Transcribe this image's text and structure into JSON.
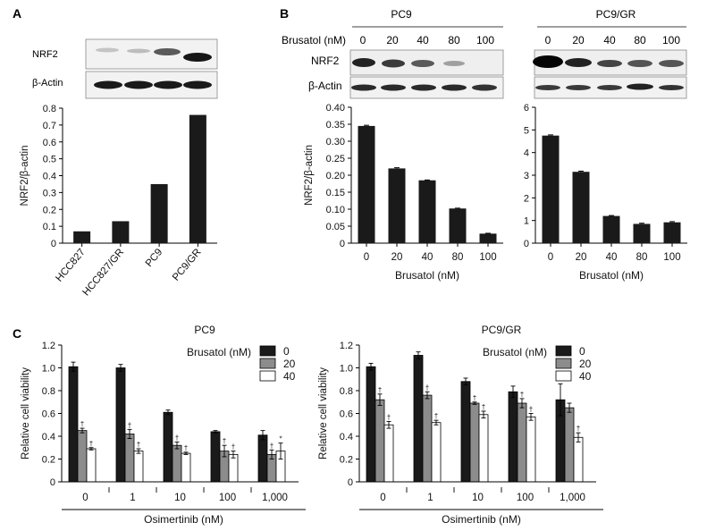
{
  "panel_labels": {
    "a": "A",
    "b": "B",
    "c": "C"
  },
  "colors": {
    "black_bar": "#1a1a1a",
    "gray_bar": "#8c8c8c",
    "white_bar": "#ffffff",
    "axis": "#000000"
  },
  "blots": {
    "a": {
      "row1": "NRF2",
      "row2": "β-Actin"
    },
    "b": {
      "pc9_title": "PC9",
      "gr_title": "PC9/GR",
      "treatment_label": "Brusatol (nM)",
      "doses": [
        "0",
        "20",
        "40",
        "80",
        "100"
      ],
      "row1": "NRF2",
      "row2": "β-Actin"
    }
  },
  "chart_data": [
    {
      "id": "a",
      "type": "bar",
      "title": "",
      "ylabel": "NRF2/β-actin",
      "xlabel": "",
      "ylim": [
        0,
        0.8
      ],
      "yticks": [
        "0",
        "0.1",
        "0.2",
        "0.3",
        "0.4",
        "0.5",
        "0.6",
        "0.7",
        "0.8"
      ],
      "categories": [
        "HCC827",
        "HCC827/GR",
        "PC9",
        "PC9/GR"
      ],
      "values": [
        0.07,
        0.13,
        0.35,
        0.76
      ]
    },
    {
      "id": "b_pc9",
      "type": "bar",
      "title": "",
      "ylabel": "NRF2/β-actin",
      "xlabel": "Brusatol (nM)",
      "ylim": [
        0,
        0.4
      ],
      "yticks": [
        "0",
        "0.05",
        "0.10",
        "0.15",
        "0.20",
        "0.25",
        "0.30",
        "0.35",
        "0.40"
      ],
      "categories": [
        "0",
        "20",
        "40",
        "80",
        "100"
      ],
      "values": [
        0.345,
        0.22,
        0.185,
        0.102,
        0.028
      ],
      "errors": [
        0.002,
        0.002,
        0.001,
        0.001,
        0.001
      ]
    },
    {
      "id": "b_gr",
      "type": "bar",
      "title": "",
      "ylabel": "",
      "xlabel": "Brusatol (nM)",
      "ylim": [
        0,
        6
      ],
      "yticks": [
        "0",
        "1",
        "2",
        "3",
        "4",
        "5",
        "6"
      ],
      "categories": [
        "0",
        "20",
        "40",
        "80",
        "100"
      ],
      "values": [
        4.75,
        3.15,
        1.2,
        0.85,
        0.92
      ],
      "errors": [
        0.03,
        0.03,
        0.02,
        0.03,
        0.03
      ]
    },
    {
      "id": "c_pc9",
      "type": "bar",
      "title": "PC9",
      "ylabel": "Relative cell viability",
      "xlabel": "Osimertinib (nM)",
      "ylim": [
        0,
        1.2
      ],
      "yticks": [
        "0",
        "0.2",
        "0.4",
        "0.6",
        "0.8",
        "1.0",
        "1.2"
      ],
      "legend_title": "Brusatol (nM)",
      "categories": [
        "0",
        "1",
        "10",
        "100",
        "1,000"
      ],
      "series": [
        {
          "name": "0",
          "values": [
            1.01,
            1.0,
            0.61,
            0.44,
            0.41
          ],
          "errors": [
            0.04,
            0.03,
            0.02,
            0.01,
            0.04
          ],
          "marks": [
            "",
            "",
            "",
            "",
            ""
          ]
        },
        {
          "name": "20",
          "values": [
            0.45,
            0.42,
            0.32,
            0.27,
            0.24
          ],
          "errors": [
            0.02,
            0.04,
            0.03,
            0.05,
            0.04
          ],
          "marks": [
            "†",
            "†",
            "†",
            "†",
            "†"
          ]
        },
        {
          "name": "40",
          "values": [
            0.29,
            0.27,
            0.25,
            0.24,
            0.27
          ],
          "errors": [
            0.01,
            0.02,
            0.01,
            0.03,
            0.07
          ],
          "marks": [
            "†",
            "†",
            "†",
            "†",
            "*"
          ]
        }
      ]
    },
    {
      "id": "c_gr",
      "type": "bar",
      "title": "PC9/GR",
      "ylabel": "Relative cell viability",
      "xlabel": "Osimertinib (nM)",
      "ylim": [
        0,
        1.2
      ],
      "yticks": [
        "0",
        "0.2",
        "0.4",
        "0.6",
        "0.8",
        "1.0",
        "1.2"
      ],
      "legend_title": "Brusatol (nM)",
      "categories": [
        "0",
        "1",
        "10",
        "100",
        "1,000"
      ],
      "series": [
        {
          "name": "0",
          "values": [
            1.01,
            1.11,
            0.88,
            0.79,
            0.72
          ],
          "errors": [
            0.03,
            0.03,
            0.03,
            0.05,
            0.14
          ],
          "marks": [
            "",
            "",
            "",
            "",
            ""
          ]
        },
        {
          "name": "20",
          "values": [
            0.72,
            0.76,
            0.69,
            0.69,
            0.65
          ],
          "errors": [
            0.05,
            0.03,
            0.01,
            0.04,
            0.04
          ],
          "marks": [
            "†",
            "†",
            "†",
            "†",
            ""
          ]
        },
        {
          "name": "40",
          "values": [
            0.5,
            0.52,
            0.59,
            0.57,
            0.39
          ],
          "errors": [
            0.03,
            0.02,
            0.03,
            0.03,
            0.04
          ],
          "marks": [
            "†",
            "†",
            "†",
            "†",
            "†"
          ]
        }
      ]
    }
  ]
}
